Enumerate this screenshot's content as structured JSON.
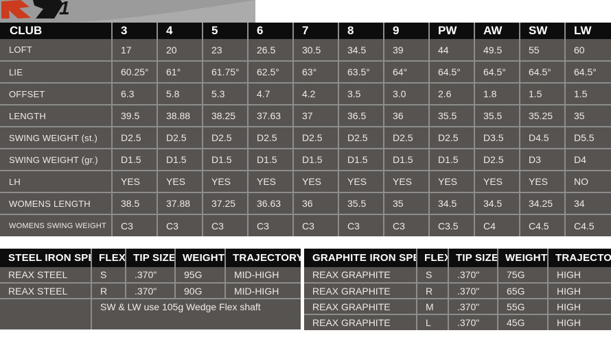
{
  "logo": {
    "numeral": "1"
  },
  "colors": {
    "accent_red": "#cc3b1d",
    "header_black": "#0d0d0d",
    "cell_gray": "#575350",
    "grid_gray": "#8d8d8d",
    "band_gray": "#9b9b9b",
    "text_light": "#edebe8"
  },
  "main_table": {
    "columns": [
      "CLUB",
      "3",
      "4",
      "5",
      "6",
      "7",
      "8",
      "9",
      "PW",
      "AW",
      "SW",
      "LW"
    ],
    "rows": [
      {
        "label": "LOFT",
        "values": [
          "17",
          "20",
          "23",
          "26.5",
          "30.5",
          "34.5",
          "39",
          "44",
          "49.5",
          "55",
          "60"
        ]
      },
      {
        "label": "LIE",
        "values": [
          "60.25°",
          "61°",
          "61.75°",
          "62.5°",
          "63°",
          "63.5°",
          "64°",
          "64.5°",
          "64.5°",
          "64.5°",
          "64.5°"
        ]
      },
      {
        "label": "OFFSET",
        "values": [
          "6.3",
          "5.8",
          "5.3",
          "4.7",
          "4.2",
          "3.5",
          "3.0",
          "2.6",
          "1.8",
          "1.5",
          "1.5"
        ]
      },
      {
        "label": "LENGTH",
        "values": [
          "39.5",
          "38.88",
          "38.25",
          "37.63",
          "37",
          "36.5",
          "36",
          "35.5",
          "35.5",
          "35.25",
          "35"
        ]
      },
      {
        "label": "SWING WEIGHT (st.)",
        "values": [
          "D2.5",
          "D2.5",
          "D2.5",
          "D2.5",
          "D2.5",
          "D2.5",
          "D2.5",
          "D2.5",
          "D3.5",
          "D4.5",
          "D5.5"
        ]
      },
      {
        "label": "SWING WEIGHT (gr.)",
        "values": [
          "D1.5",
          "D1.5",
          "D1.5",
          "D1.5",
          "D1.5",
          "D1.5",
          "D1.5",
          "D1.5",
          "D2.5",
          "D3",
          "D4"
        ]
      },
      {
        "label": "LH",
        "values": [
          "YES",
          "YES",
          "YES",
          "YES",
          "YES",
          "YES",
          "YES",
          "YES",
          "YES",
          "YES",
          "NO"
        ]
      },
      {
        "label": "WOMENS LENGTH",
        "values": [
          "38.5",
          "37.88",
          "37.25",
          "36.63",
          "36",
          "35.5",
          "35",
          "34.5",
          "34.5",
          "34.25",
          "34"
        ]
      },
      {
        "label": "WOMENS SWING WEIGHT",
        "values": [
          "C3",
          "C3",
          "C3",
          "C3",
          "C3",
          "C3",
          "C3",
          "C3.5",
          "C4",
          "C4.5",
          "C4.5"
        ]
      }
    ]
  },
  "steel_table": {
    "headers": [
      "STEEL IRON SPECS",
      "FLEX",
      "TIP SIZE",
      "WEIGHT",
      "TRAJECTORY"
    ],
    "rows": [
      [
        "REAX STEEL",
        "S",
        ".370\"",
        "95G",
        "MID-HIGH"
      ],
      [
        "REAX STEEL",
        "R",
        ".370\"",
        "90G",
        "MID-HIGH"
      ]
    ],
    "note": "SW & LW use 105g Wedge Flex shaft"
  },
  "graphite_table": {
    "headers": [
      "GRAPHITE IRON SPECS",
      "FLEX",
      "TIP SIZE",
      "WEIGHT",
      "TRAJECTORY"
    ],
    "rows": [
      [
        "REAX GRAPHITE",
        "S",
        ".370\"",
        "75G",
        "HIGH"
      ],
      [
        "REAX GRAPHITE",
        "R",
        ".370\"",
        "65G",
        "HIGH"
      ],
      [
        "REAX GRAPHITE",
        "M",
        ".370\"",
        "55G",
        "HIGH"
      ],
      [
        "REAX GRAPHITE",
        "L",
        ".370\"",
        "45G",
        "HIGH"
      ]
    ]
  }
}
